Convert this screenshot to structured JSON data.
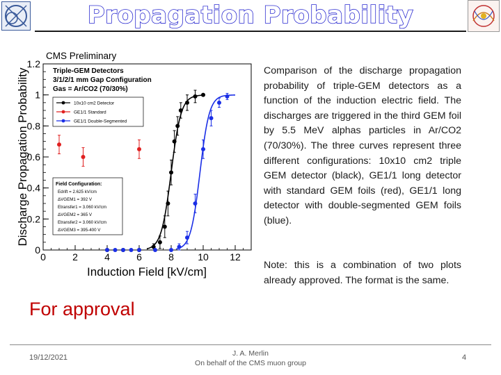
{
  "slide": {
    "title": "Propagation Probability",
    "description": "Comparison of the discharge propagation probability of triple-GEM detectors as a function of the induction electric field. The discharges are triggered in the third GEM foil by 5.5 MeV alphas particles in Ar/CO2 (70/30%). The three curves represent three different configurations: 10x10 cm2 triple GEM detector (black), GE1/1 long detector with standard GEM foils (red), GE1/1 long detector with double-segmented GEM foils (blue).",
    "note": "Note: this is a combination of two plots already approved. The format is the same.",
    "approval": "For approval",
    "date": "19/12/2021",
    "author_line1": "J. A. Merlin",
    "author_line2": "On behalf of the CMS muon group",
    "page": "4",
    "logo_left": "cern-logo",
    "logo_right": "cms-logo",
    "title_color": "#2a2ad0"
  },
  "chart_data": {
    "type": "scatter",
    "header": "CMS Preliminary",
    "setup": [
      "Triple-GEM Detectors",
      "3/1/2/1 mm Gap Configuration",
      "Gas = Ar/CO2 (70/30%)"
    ],
    "xlabel": "Induction Field [kV/cm]",
    "ylabel": "Discharge Propagation Probability",
    "xlim": [
      0,
      13
    ],
    "ylim": [
      0,
      1.2
    ],
    "xticks": [
      "0",
      "2",
      "4",
      "6",
      "8",
      "10",
      "12"
    ],
    "yticks": [
      "0",
      "0.2",
      "0.4",
      "0.6",
      "0.8",
      "1",
      "1.2"
    ],
    "series": [
      {
        "name": "10x10 cm2 Detector",
        "color": "#000000",
        "x": [
          4.0,
          5.0,
          6.0,
          6.9,
          7.3,
          7.6,
          7.8,
          8.0,
          8.2,
          8.4,
          8.6,
          9.0,
          9.5,
          10.0
        ],
        "y": [
          0.0,
          0.0,
          0.0,
          0.02,
          0.05,
          0.15,
          0.3,
          0.5,
          0.7,
          0.8,
          0.9,
          0.95,
          0.99,
          1.0
        ],
        "yerr": [
          0.0,
          0.0,
          0.0,
          0.02,
          0.04,
          0.07,
          0.08,
          0.08,
          0.07,
          0.06,
          0.05,
          0.05,
          0.04,
          0.0
        ]
      },
      {
        "name": "GE1/1 Standard",
        "color": "#e02020",
        "x": [
          1.0,
          2.5,
          6.0
        ],
        "y": [
          0.68,
          0.6,
          0.65
        ],
        "yerr": [
          0.06,
          0.06,
          0.06
        ]
      },
      {
        "name": "GE1/1 Double-Segmented",
        "color": "#1a2ee6",
        "x": [
          4.0,
          4.5,
          5.0,
          5.5,
          6.0,
          7.0,
          8.0,
          8.5,
          9.0,
          9.5,
          10.0,
          10.5,
          11.0,
          11.5
        ],
        "y": [
          0.0,
          0.0,
          0.0,
          0.0,
          0.0,
          0.0,
          0.0,
          0.02,
          0.08,
          0.3,
          0.65,
          0.85,
          0.95,
          0.99
        ],
        "yerr": [
          0.0,
          0.0,
          0.0,
          0.0,
          0.0,
          0.0,
          0.0,
          0.02,
          0.04,
          0.06,
          0.06,
          0.05,
          0.03,
          0.02
        ]
      }
    ],
    "field_config": {
      "heading": "Field Configuration:",
      "lines": [
        "Edrift = 2.625 kV/cm",
        "ΔVGEM1 = 392 V",
        "Etransfer1 = 3.060 kV/cm",
        "ΔVGEM2 = 365 V",
        "Etransfer2 = 3.060 kV/cm",
        "ΔVGEM3 = 395-400 V"
      ]
    },
    "legend_position": "top-left",
    "grid": false
  }
}
